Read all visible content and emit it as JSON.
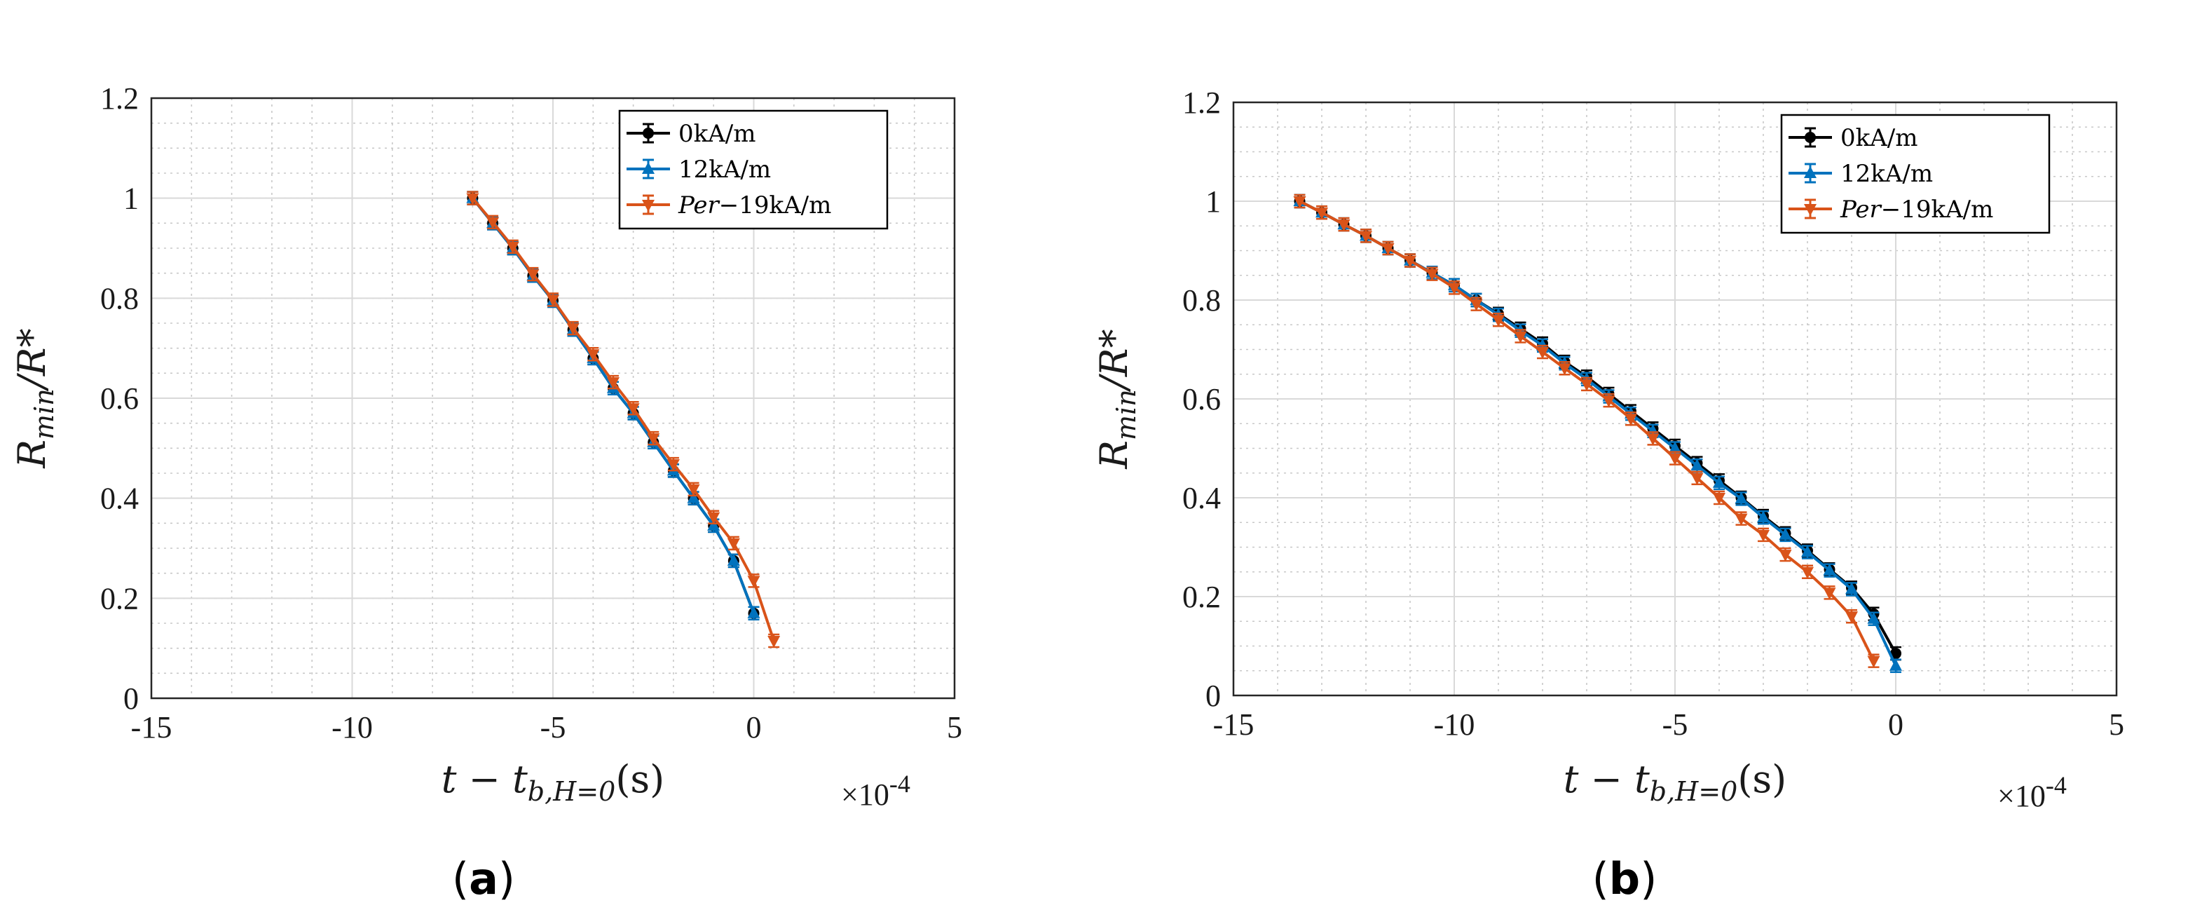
{
  "figure": {
    "panel_labels": [
      "a",
      "b"
    ]
  },
  "chart_data": [
    {
      "type": "line",
      "panel": "a",
      "xlabel_main": "t − t",
      "xlabel_sub": "b,H=0",
      "xlabel_unit": "(s)",
      "ylabel_main": "R",
      "ylabel_sub": "min",
      "ylabel_rest": "/R*",
      "xlim": [
        -15,
        5
      ],
      "ylim": [
        0,
        1.2
      ],
      "x_ticks": [
        -15,
        -10,
        -5,
        0,
        5
      ],
      "x_tick_labels": [
        "-15",
        "-10",
        "-5",
        "0",
        "5"
      ],
      "y_ticks": [
        0,
        0.2,
        0.4,
        0.6,
        0.8,
        1,
        1.2
      ],
      "y_tick_labels": [
        "0",
        "0.2",
        "0.4",
        "0.6",
        "0.8",
        "1",
        "1.2"
      ],
      "x_exponent_label": "×10",
      "x_exponent_power": "-4",
      "grid": true,
      "legend_position": "top-right",
      "series": [
        {
          "name": "0kA/m",
          "color": "#000000",
          "marker": "circle",
          "x": [
            -7.0,
            -6.5,
            -6.0,
            -5.5,
            -5.0,
            -4.5,
            -4.0,
            -3.5,
            -3.0,
            -2.5,
            -2.0,
            -1.5,
            -1.0,
            -0.5,
            0.0
          ],
          "y": [
            1.0,
            0.95,
            0.9,
            0.845,
            0.795,
            0.737,
            0.68,
            0.62,
            0.57,
            0.512,
            0.455,
            0.4,
            0.345,
            0.275,
            0.17
          ]
        },
        {
          "name": "12kA/m",
          "color": "#0072BD",
          "marker": "triangle-up",
          "x": [
            -7.0,
            -6.5,
            -6.0,
            -5.5,
            -5.0,
            -4.5,
            -4.0,
            -3.5,
            -3.0,
            -2.5,
            -2.0,
            -1.5,
            -1.0,
            -0.5,
            0.0
          ],
          "y": [
            1.0,
            0.95,
            0.9,
            0.845,
            0.795,
            0.737,
            0.68,
            0.62,
            0.57,
            0.512,
            0.455,
            0.4,
            0.345,
            0.275,
            0.17
          ]
        },
        {
          "name": "Per−19kA/m",
          "name_italic": "Per",
          "name_rest": "−19kA/m",
          "color": "#D95319",
          "marker": "triangle-down",
          "x": [
            -7.0,
            -6.5,
            -6.0,
            -5.5,
            -5.0,
            -4.5,
            -4.0,
            -3.5,
            -3.0,
            -2.5,
            -2.0,
            -1.5,
            -1.0,
            -0.5,
            0.0,
            0.5
          ],
          "y": [
            1.0,
            0.952,
            0.903,
            0.848,
            0.797,
            0.74,
            0.688,
            0.632,
            0.58,
            0.52,
            0.468,
            0.418,
            0.362,
            0.31,
            0.235,
            0.115
          ]
        }
      ]
    },
    {
      "type": "line",
      "panel": "b",
      "xlabel_main": "t − t",
      "xlabel_sub": "b,H=0",
      "xlabel_unit": "(s)",
      "ylabel_main": "R",
      "ylabel_sub": "min",
      "ylabel_rest": "/R*",
      "xlim": [
        -15,
        5
      ],
      "ylim": [
        0,
        1.2
      ],
      "x_ticks": [
        -15,
        -10,
        -5,
        0,
        5
      ],
      "x_tick_labels": [
        "-15",
        "-10",
        "-5",
        "0",
        "5"
      ],
      "y_ticks": [
        0,
        0.2,
        0.4,
        0.6,
        0.8,
        1,
        1.2
      ],
      "y_tick_labels": [
        "0",
        "0.2",
        "0.4",
        "0.6",
        "0.8",
        "1",
        "1.2"
      ],
      "x_exponent_label": "×10",
      "x_exponent_power": "-4",
      "grid": true,
      "legend_position": "top-right",
      "series": [
        {
          "name": "0kA/m",
          "color": "#000000",
          "marker": "circle",
          "x": [
            -13.5,
            -13.0,
            -12.5,
            -12.0,
            -11.5,
            -11.0,
            -10.5,
            -10.0,
            -9.5,
            -9.0,
            -8.5,
            -8.0,
            -7.5,
            -7.0,
            -6.5,
            -6.0,
            -5.5,
            -5.0,
            -4.5,
            -4.0,
            -3.5,
            -3.0,
            -2.5,
            -2.0,
            -1.5,
            -1.0,
            -0.5,
            0.0
          ],
          "y": [
            1.0,
            0.977,
            0.953,
            0.93,
            0.905,
            0.88,
            0.855,
            0.83,
            0.8,
            0.772,
            0.742,
            0.712,
            0.675,
            0.645,
            0.61,
            0.575,
            0.54,
            0.505,
            0.47,
            0.435,
            0.4,
            0.363,
            0.328,
            0.293,
            0.255,
            0.218,
            0.165,
            0.085
          ]
        },
        {
          "name": "12kA/m",
          "color": "#0072BD",
          "marker": "triangle-up",
          "x": [
            -13.5,
            -13.0,
            -12.5,
            -12.0,
            -11.5,
            -11.0,
            -10.5,
            -10.0,
            -9.5,
            -9.0,
            -8.5,
            -8.0,
            -7.5,
            -7.0,
            -6.5,
            -6.0,
            -5.5,
            -5.0,
            -4.5,
            -4.0,
            -3.5,
            -3.0,
            -2.5,
            -2.0,
            -1.5,
            -1.0,
            -0.5,
            0.0
          ],
          "y": [
            1.0,
            0.977,
            0.953,
            0.93,
            0.905,
            0.88,
            0.855,
            0.83,
            0.8,
            0.77,
            0.738,
            0.708,
            0.672,
            0.64,
            0.605,
            0.57,
            0.535,
            0.5,
            0.465,
            0.43,
            0.398,
            0.36,
            0.325,
            0.29,
            0.253,
            0.215,
            0.155,
            0.06
          ]
        },
        {
          "name": "Per−19kA/m",
          "name_italic": "Per",
          "name_rest": "−19kA/m",
          "color": "#D95319",
          "marker": "triangle-down",
          "x": [
            -13.5,
            -13.0,
            -12.5,
            -12.0,
            -11.5,
            -11.0,
            -10.5,
            -10.0,
            -9.5,
            -9.0,
            -8.5,
            -8.0,
            -7.5,
            -7.0,
            -6.5,
            -6.0,
            -5.5,
            -5.0,
            -4.5,
            -4.0,
            -3.5,
            -3.0,
            -2.5,
            -2.0,
            -1.5,
            -1.0,
            -0.5
          ],
          "y": [
            1.0,
            0.977,
            0.953,
            0.93,
            0.905,
            0.88,
            0.853,
            0.825,
            0.792,
            0.76,
            0.727,
            0.695,
            0.662,
            0.63,
            0.597,
            0.56,
            0.52,
            0.48,
            0.44,
            0.4,
            0.358,
            0.325,
            0.285,
            0.25,
            0.208,
            0.16,
            0.07
          ]
        }
      ]
    }
  ]
}
